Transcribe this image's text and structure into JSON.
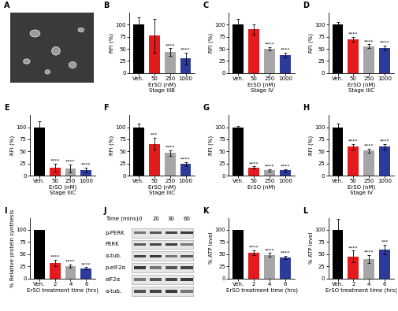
{
  "chart_data": [
    {
      "type": "bar",
      "panel_label": "B",
      "y_label": "RFI (%)",
      "x_label": "ErSO (nM)",
      "x_sublabel": "Stage IIIB",
      "categories": [
        "Veh.",
        "50",
        "250",
        "1000"
      ],
      "values": [
        100,
        77,
        43,
        30
      ],
      "errors": [
        15,
        35,
        8,
        12
      ],
      "annotations": [
        null,
        null,
        "****",
        "****"
      ],
      "colors": [
        "#000000",
        "#e41a1c",
        "#a6a6a6",
        "#2b3a9b"
      ],
      "ylim": [
        0,
        125
      ],
      "yticks": [
        0,
        25,
        50,
        75,
        100
      ]
    },
    {
      "type": "bar",
      "panel_label": "C",
      "y_label": "RFI (%)",
      "x_label": "ErSO (nM)",
      "x_sublabel": "Stage IV",
      "categories": [
        "Veh.",
        "50",
        "250",
        "1000"
      ],
      "values": [
        100,
        90,
        50,
        37
      ],
      "errors": [
        12,
        10,
        3,
        5
      ],
      "annotations": [
        null,
        null,
        "****",
        "****"
      ],
      "colors": [
        "#000000",
        "#e41a1c",
        "#a6a6a6",
        "#2b3a9b"
      ],
      "ylim": [
        0,
        125
      ],
      "yticks": [
        0,
        25,
        50,
        75,
        100
      ]
    },
    {
      "type": "bar",
      "panel_label": "D",
      "y_label": "RFI (%)",
      "x_label": "ErSO (nM)",
      "x_sublabel": "Stage IIIC",
      "categories": [
        "Veh.",
        "50",
        "250",
        "1000"
      ],
      "values": [
        100,
        70,
        55,
        52
      ],
      "errors": [
        5,
        5,
        4,
        5
      ],
      "annotations": [
        null,
        "****",
        "****",
        "****"
      ],
      "colors": [
        "#000000",
        "#e41a1c",
        "#a6a6a6",
        "#2b3a9b"
      ],
      "ylim": [
        0,
        125
      ],
      "yticks": [
        0,
        25,
        50,
        75,
        100
      ]
    },
    {
      "type": "bar",
      "panel_label": "E",
      "y_label": "RFI (%)",
      "x_label": "ErSO (nM)",
      "x_sublabel": "Stage IIIC",
      "categories": [
        "Veh.",
        "50",
        "250",
        "1000"
      ],
      "values": [
        100,
        17,
        15,
        12
      ],
      "errors": [
        12,
        8,
        8,
        5
      ],
      "annotations": [
        null,
        "****",
        "****",
        "****"
      ],
      "colors": [
        "#000000",
        "#e41a1c",
        "#a6a6a6",
        "#2b3a9b"
      ],
      "ylim": [
        0,
        125
      ],
      "yticks": [
        0,
        25,
        50,
        75,
        100
      ]
    },
    {
      "type": "bar",
      "panel_label": "F",
      "y_label": "RFI (%)",
      "x_label": "ErSO (nM)",
      "x_sublabel": "Stage IIIC",
      "categories": [
        "Veh.",
        "50",
        "250",
        "1000"
      ],
      "values": [
        100,
        66,
        47,
        24
      ],
      "errors": [
        8,
        12,
        6,
        4
      ],
      "annotations": [
        null,
        "***",
        "****",
        "****"
      ],
      "colors": [
        "#000000",
        "#e41a1c",
        "#a6a6a6",
        "#2b3a9b"
      ],
      "ylim": [
        0,
        125
      ],
      "yticks": [
        0,
        25,
        50,
        75,
        100
      ]
    },
    {
      "type": "bar",
      "panel_label": "G",
      "y_label": "RFI (%)",
      "x_label": "ErSO (nM)",
      "categories": [
        "Veh.",
        "50",
        "250",
        "1000"
      ],
      "values": [
        100,
        17,
        11,
        11
      ],
      "errors": [
        2,
        2,
        2,
        2
      ],
      "annotations": [
        null,
        "****",
        "****",
        "****"
      ],
      "colors": [
        "#000000",
        "#e41a1c",
        "#a6a6a6",
        "#2b3a9b"
      ],
      "ylim": [
        0,
        125
      ],
      "yticks": [
        0,
        25,
        50,
        75,
        100
      ]
    },
    {
      "type": "bar",
      "panel_label": "H",
      "y_label": "RFI (%)",
      "x_label": "ErSO (nM)",
      "x_sublabel": "Stage IV",
      "categories": [
        "Veh.",
        "50",
        "250",
        "1000"
      ],
      "values": [
        100,
        60,
        52,
        60
      ],
      "errors": [
        8,
        6,
        4,
        6
      ],
      "annotations": [
        null,
        "****",
        "****",
        "****"
      ],
      "colors": [
        "#000000",
        "#e41a1c",
        "#a6a6a6",
        "#2b3a9b"
      ],
      "ylim": [
        0,
        125
      ],
      "yticks": [
        0,
        25,
        50,
        75,
        100
      ]
    },
    {
      "type": "bar",
      "panel_label": "I",
      "y_label": "% Relative protein synthesis",
      "x_label": "ErSO treatment time (hrs)",
      "categories": [
        "Veh.",
        "2",
        "4",
        "6"
      ],
      "values": [
        100,
        32,
        25,
        21
      ],
      "errors": [
        0,
        6,
        3,
        2
      ],
      "annotations": [
        null,
        "****",
        "****",
        "****"
      ],
      "colors": [
        "#000000",
        "#e41a1c",
        "#a6a6a6",
        "#2b3a9b"
      ],
      "ylim": [
        0,
        125
      ],
      "yticks": [
        0,
        25,
        50,
        75,
        100
      ]
    },
    {
      "type": "bar",
      "panel_label": "K",
      "y_label": "% ATP level",
      "x_label": "ErSO treatment time (hrs)",
      "categories": [
        "Veh.",
        "2",
        "4",
        "6"
      ],
      "values": [
        100,
        53,
        48,
        43
      ],
      "errors": [
        0,
        5,
        4,
        4
      ],
      "annotations": [
        null,
        "****",
        "****",
        "****"
      ],
      "colors": [
        "#000000",
        "#e41a1c",
        "#a6a6a6",
        "#2b3a9b"
      ],
      "ylim": [
        0,
        125
      ],
      "yticks": [
        0,
        25,
        50,
        75,
        100
      ]
    },
    {
      "type": "bar",
      "panel_label": "L",
      "y_label": "% ATP level",
      "x_label": "ErSO treatment time (hrs)",
      "categories": [
        "Veh.",
        "2",
        "4",
        "6"
      ],
      "values": [
        100,
        45,
        40,
        59
      ],
      "errors": [
        22,
        12,
        8,
        10
      ],
      "annotations": [
        null,
        "****",
        "****",
        "***"
      ],
      "colors": [
        "#000000",
        "#e41a1c",
        "#a6a6a6",
        "#2b3a9b"
      ],
      "ylim": [
        0,
        125
      ],
      "yticks": [
        0,
        25,
        50,
        75,
        100
      ]
    }
  ],
  "image": {
    "panel_label": "A"
  },
  "blot": {
    "panel_label": "J",
    "header": "Time (mins)",
    "lanes": [
      "0",
      "20",
      "30",
      "60"
    ],
    "rows": [
      "p-PERK",
      "PERK",
      "α-tub.",
      "p-eIF2α",
      "eIF2α",
      "α-tub."
    ]
  }
}
